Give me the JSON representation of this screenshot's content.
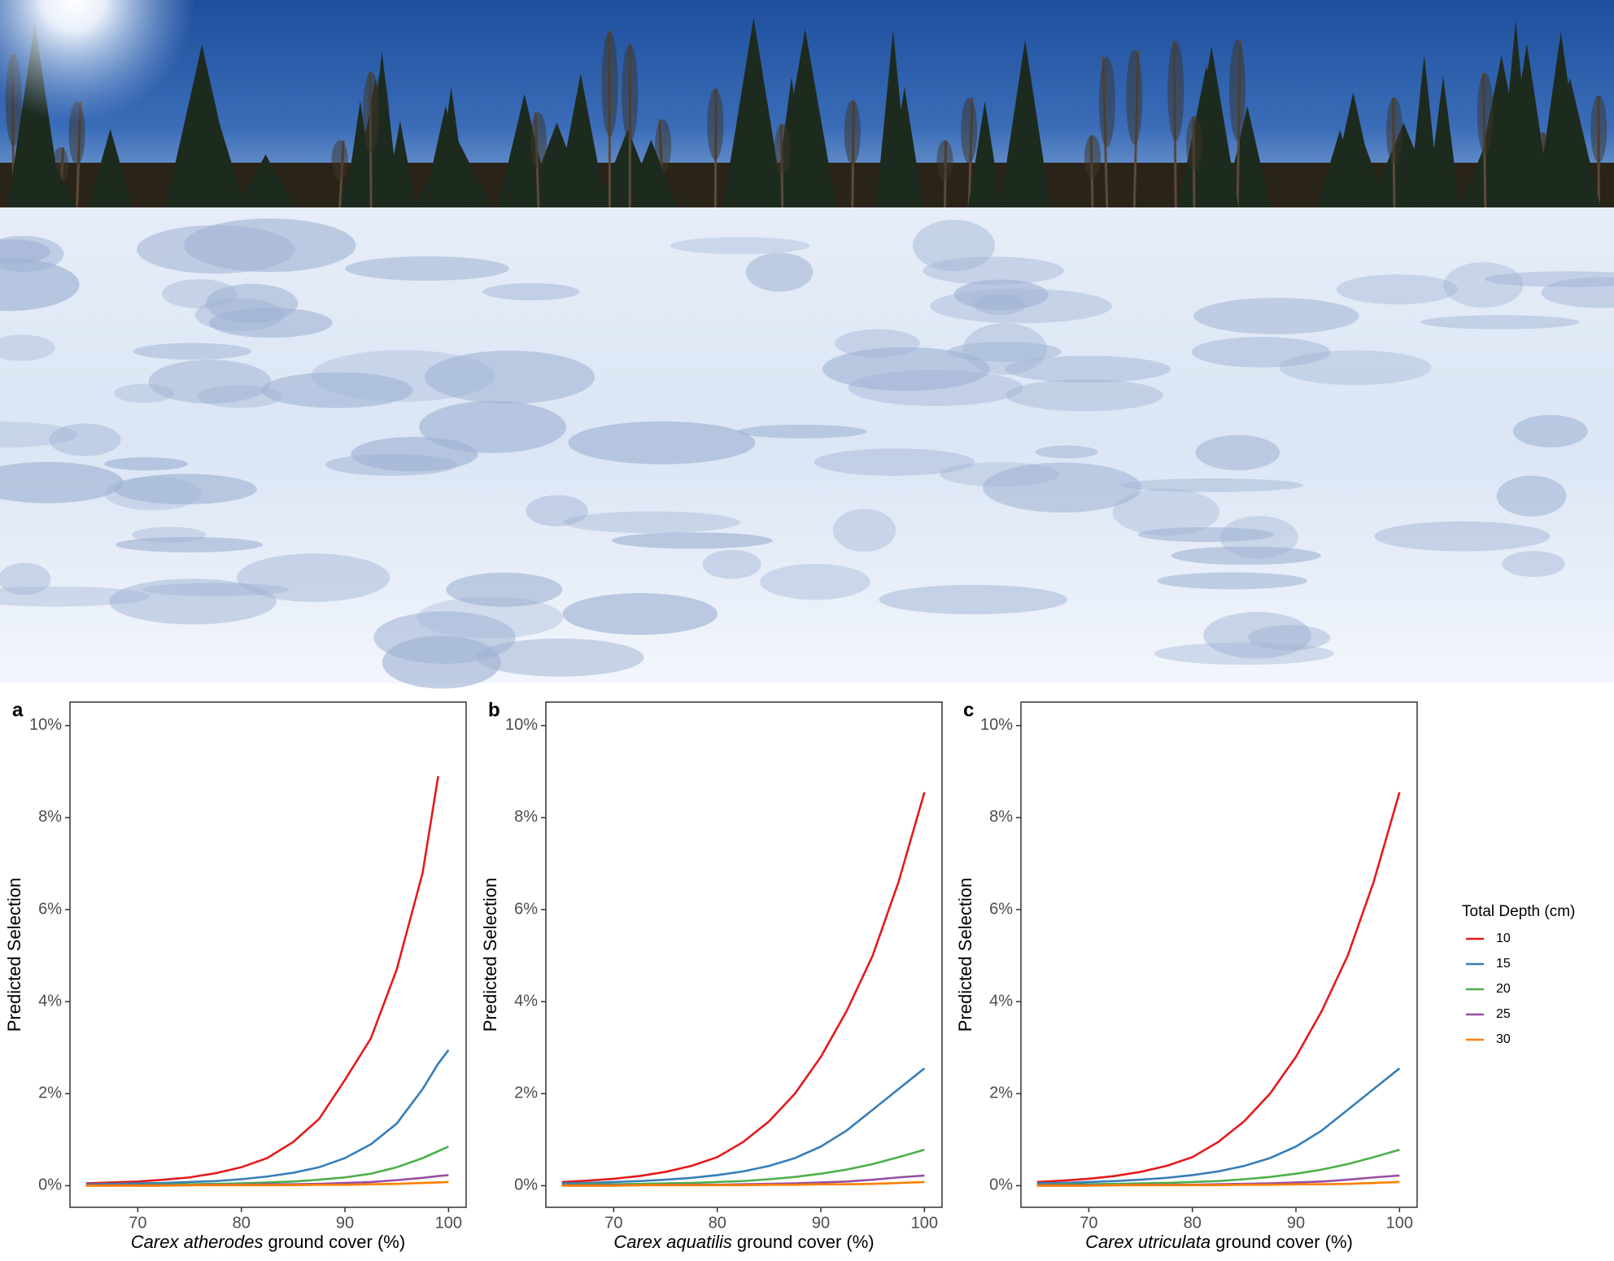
{
  "chart_data": [
    {
      "type": "line",
      "panel_label": "a",
      "y_label": "Predicted Selection",
      "x_label_species": "Carex atherodes",
      "x_label": "ground cover (%)",
      "x": [
        65,
        67.5,
        70,
        72.5,
        75,
        77.5,
        80,
        82.5,
        85,
        87.5,
        90,
        92.5,
        95,
        97.5,
        99,
        100
      ],
      "series": [
        {
          "color": "#e41a1c",
          "values": [
            0.05,
            0.07,
            0.09,
            0.13,
            0.18,
            0.27,
            0.4,
            0.6,
            0.95,
            1.45,
            2.3,
            3.2,
            4.7,
            6.8,
            8.9,
            null
          ]
        },
        {
          "color": "#377eb8",
          "values": [
            0.03,
            0.04,
            0.05,
            0.06,
            0.08,
            0.1,
            0.14,
            0.2,
            0.28,
            0.4,
            0.6,
            0.9,
            1.35,
            2.1,
            2.65,
            2.95
          ]
        },
        {
          "color": "#4daf4a",
          "values": [
            0.01,
            0.02,
            0.02,
            0.03,
            0.03,
            0.04,
            0.05,
            0.07,
            0.09,
            0.13,
            0.18,
            0.26,
            0.4,
            0.6,
            0.75,
            0.85
          ]
        },
        {
          "color": "#984ea3",
          "values": [
            0.01,
            0.01,
            0.01,
            0.01,
            0.01,
            0.02,
            0.02,
            0.03,
            0.03,
            0.04,
            0.06,
            0.08,
            0.12,
            0.17,
            0.21,
            0.23
          ]
        },
        {
          "color": "#ff7f00",
          "values": [
            0.0,
            0.0,
            0.0,
            0.0,
            0.01,
            0.01,
            0.01,
            0.01,
            0.01,
            0.02,
            0.02,
            0.03,
            0.04,
            0.06,
            0.07,
            0.08
          ]
        }
      ],
      "xlim": [
        63.45,
        101.7
      ],
      "xticks": [
        70,
        80,
        90,
        100
      ],
      "ylim": [
        -0.47,
        10.51
      ],
      "yticks": [
        {
          "value": 0,
          "label": "0%"
        },
        {
          "value": 2,
          "label": "2%"
        },
        {
          "value": 4,
          "label": "4%"
        },
        {
          "value": 6,
          "label": "6%"
        },
        {
          "value": 8,
          "label": "8%"
        },
        {
          "value": 10,
          "label": "10%"
        }
      ]
    },
    {
      "type": "line",
      "panel_label": "b",
      "y_label": "Predicted Selection",
      "x_label_species": "Carex aquatilis",
      "x_label": "ground cover (%)",
      "x": [
        65,
        67.5,
        70,
        72.5,
        75,
        77.5,
        80,
        82.5,
        85,
        87.5,
        90,
        92.5,
        95,
        97.5,
        100
      ],
      "series": [
        {
          "color": "#e41a1c",
          "values": [
            0.08,
            0.11,
            0.15,
            0.21,
            0.3,
            0.43,
            0.62,
            0.95,
            1.4,
            2.0,
            2.8,
            3.8,
            5.0,
            6.6,
            8.55
          ]
        },
        {
          "color": "#377eb8",
          "values": [
            0.05,
            0.06,
            0.08,
            0.1,
            0.13,
            0.17,
            0.23,
            0.31,
            0.43,
            0.6,
            0.85,
            1.2,
            1.65,
            2.1,
            2.55
          ]
        },
        {
          "color": "#4daf4a",
          "values": [
            0.02,
            0.03,
            0.03,
            0.04,
            0.05,
            0.06,
            0.08,
            0.1,
            0.14,
            0.19,
            0.26,
            0.35,
            0.47,
            0.62,
            0.78
          ]
        },
        {
          "color": "#984ea3",
          "values": [
            0.01,
            0.01,
            0.01,
            0.01,
            0.02,
            0.02,
            0.02,
            0.03,
            0.04,
            0.05,
            0.07,
            0.09,
            0.13,
            0.18,
            0.22
          ]
        },
        {
          "color": "#ff7f00",
          "values": [
            0.0,
            0.0,
            0.0,
            0.01,
            0.01,
            0.01,
            0.01,
            0.01,
            0.02,
            0.02,
            0.03,
            0.03,
            0.04,
            0.06,
            0.08
          ]
        }
      ],
      "xlim": [
        63.45,
        101.7
      ],
      "xticks": [
        70,
        80,
        90,
        100
      ],
      "ylim": [
        -0.47,
        10.51
      ],
      "yticks": [
        {
          "value": 0,
          "label": "0%"
        },
        {
          "value": 2,
          "label": "2%"
        },
        {
          "value": 4,
          "label": "4%"
        },
        {
          "value": 6,
          "label": "6%"
        },
        {
          "value": 8,
          "label": "8%"
        },
        {
          "value": 10,
          "label": "10%"
        }
      ]
    },
    {
      "type": "line",
      "panel_label": "c",
      "y_label": "Predicted Selection",
      "x_label_species": "Carex utriculata",
      "x_label": "ground cover (%)",
      "x": [
        65,
        67.5,
        70,
        72.5,
        75,
        77.5,
        80,
        82.5,
        85,
        87.5,
        90,
        92.5,
        95,
        97.5,
        100
      ],
      "legend_title": "Total Depth (cm)",
      "series": [
        {
          "name": "10",
          "color": "#e41a1c",
          "values": [
            0.08,
            0.11,
            0.15,
            0.21,
            0.3,
            0.43,
            0.62,
            0.95,
            1.4,
            2.0,
            2.8,
            3.8,
            5.0,
            6.6,
            8.55
          ]
        },
        {
          "name": "15",
          "color": "#377eb8",
          "values": [
            0.05,
            0.06,
            0.08,
            0.1,
            0.13,
            0.17,
            0.23,
            0.31,
            0.43,
            0.6,
            0.85,
            1.2,
            1.65,
            2.1,
            2.55
          ]
        },
        {
          "name": "20",
          "color": "#4daf4a",
          "values": [
            0.02,
            0.03,
            0.03,
            0.04,
            0.05,
            0.06,
            0.08,
            0.1,
            0.14,
            0.19,
            0.26,
            0.35,
            0.47,
            0.62,
            0.78
          ]
        },
        {
          "name": "25",
          "color": "#984ea3",
          "values": [
            0.01,
            0.01,
            0.01,
            0.01,
            0.02,
            0.02,
            0.02,
            0.03,
            0.04,
            0.05,
            0.07,
            0.09,
            0.13,
            0.18,
            0.22
          ]
        },
        {
          "name": "30",
          "color": "#ff7f00",
          "values": [
            0.0,
            0.0,
            0.0,
            0.01,
            0.01,
            0.01,
            0.01,
            0.01,
            0.02,
            0.02,
            0.03,
            0.03,
            0.04,
            0.06,
            0.08
          ]
        }
      ],
      "xlim": [
        63.45,
        101.7
      ],
      "xticks": [
        70,
        80,
        90,
        100
      ],
      "ylim": [
        -0.47,
        10.51
      ],
      "yticks": [
        {
          "value": 0,
          "label": "0%"
        },
        {
          "value": 2,
          "label": "2%"
        },
        {
          "value": 4,
          "label": "4%"
        },
        {
          "value": 6,
          "label": "6%"
        },
        {
          "value": 8,
          "label": "8%"
        },
        {
          "value": 10,
          "label": "10%"
        }
      ]
    }
  ]
}
